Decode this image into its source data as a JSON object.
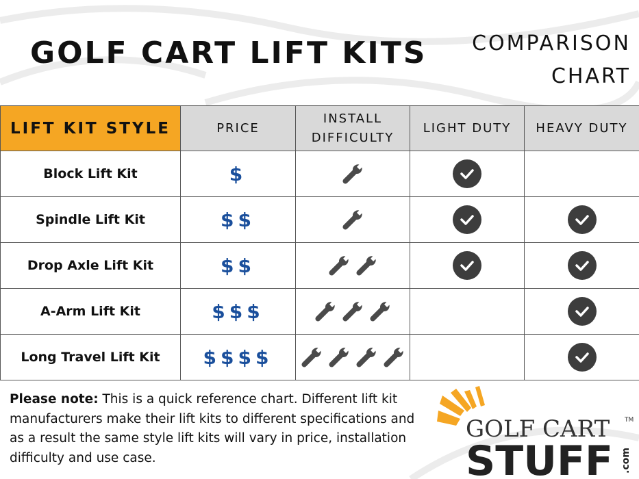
{
  "header": {
    "title": "GOLF CART LIFT KITS",
    "subtitle_line1": "COMPARISON",
    "subtitle_line2": "CHART"
  },
  "table": {
    "columns": [
      "LIFT KIT STYLE",
      "PRICE",
      "INSTALL DIFFICULTY",
      "LIGHT DUTY",
      "HEAVY DUTY"
    ],
    "rows": [
      {
        "name": "Block Lift Kit",
        "price": "$",
        "difficulty": 1,
        "light_duty": true,
        "heavy_duty": false
      },
      {
        "name": "Spindle Lift Kit",
        "price": "$$",
        "difficulty": 1,
        "light_duty": true,
        "heavy_duty": true
      },
      {
        "name": "Drop Axle Lift Kit",
        "price": "$$",
        "difficulty": 2,
        "light_duty": true,
        "heavy_duty": true
      },
      {
        "name": "A-Arm Lift Kit",
        "price": "$$$",
        "difficulty": 3,
        "light_duty": false,
        "heavy_duty": true
      },
      {
        "name": "Long Travel Lift Kit",
        "price": "$$$$",
        "difficulty": 4,
        "light_duty": false,
        "heavy_duty": true
      }
    ]
  },
  "note": {
    "bold": "Please note:",
    "text": " This is a quick reference chart. Different lift kit manufacturers make their lift kits to different specifications and as a result the same style lift kits will vary in price, installation difficulty and use case."
  },
  "logo": {
    "line1": "GOLF CART",
    "line2": "STUFF",
    "tld": ".com",
    "tm": "TM"
  },
  "colors": {
    "header_accent": "#f5a623",
    "price": "#1a4f9c",
    "check": "#3d3d3d",
    "wrench": "#4a4a4a"
  },
  "icons": {
    "difficulty": "wrench-icon",
    "duty": "check-circle-icon"
  }
}
